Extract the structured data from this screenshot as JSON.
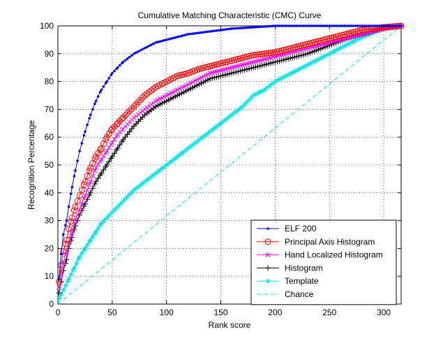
{
  "chart_data": {
    "type": "line",
    "title": "Cumulative Matching Characteristic (CMC) Curve",
    "xlabel": "Rank score",
    "ylabel": "Recognition Percentage",
    "xlim": [
      0,
      316
    ],
    "ylim": [
      0,
      100
    ],
    "xticks": [
      "0",
      "50",
      "100",
      "150",
      "200",
      "250",
      "300"
    ],
    "yticks": [
      "0",
      "10",
      "20",
      "30",
      "40",
      "50",
      "60",
      "70",
      "80",
      "90",
      "100"
    ],
    "grid": "dotted",
    "legend_position": "bottom-right",
    "series": [
      {
        "name": "ELF 200",
        "color": "#0000ff",
        "marker": "dot",
        "line": "solid",
        "points": [
          [
            1,
            9
          ],
          [
            3,
            18
          ],
          [
            5,
            25
          ],
          [
            8,
            30
          ],
          [
            10,
            35
          ],
          [
            13,
            42
          ],
          [
            16,
            48
          ],
          [
            20,
            55
          ],
          [
            25,
            62
          ],
          [
            30,
            68
          ],
          [
            35,
            73
          ],
          [
            40,
            77
          ],
          [
            45,
            80
          ],
          [
            50,
            83
          ],
          [
            55,
            85
          ],
          [
            60,
            87
          ],
          [
            70,
            90
          ],
          [
            80,
            92
          ],
          [
            90,
            94
          ],
          [
            100,
            95
          ],
          [
            120,
            97
          ],
          [
            140,
            98
          ],
          [
            160,
            99
          ],
          [
            180,
            99.5
          ],
          [
            200,
            100
          ],
          [
            230,
            100
          ],
          [
            260,
            100
          ],
          [
            290,
            100
          ],
          [
            316,
            100
          ]
        ]
      },
      {
        "name": "Principal Axis Histogram",
        "color": "#ff0000",
        "marker": "circle",
        "line": "solid",
        "points": [
          [
            1,
            8
          ],
          [
            3,
            14
          ],
          [
            5,
            19
          ],
          [
            8,
            23
          ],
          [
            10,
            27
          ],
          [
            13,
            31
          ],
          [
            16,
            35
          ],
          [
            20,
            39
          ],
          [
            25,
            44
          ],
          [
            30,
            49
          ],
          [
            35,
            53
          ],
          [
            40,
            56
          ],
          [
            45,
            60
          ],
          [
            50,
            63
          ],
          [
            55,
            65
          ],
          [
            60,
            67
          ],
          [
            70,
            71
          ],
          [
            80,
            75
          ],
          [
            90,
            78
          ],
          [
            100,
            80
          ],
          [
            110,
            82
          ],
          [
            120,
            83
          ],
          [
            130,
            84.5
          ],
          [
            140,
            85.5
          ],
          [
            150,
            86.5
          ],
          [
            160,
            87.5
          ],
          [
            170,
            88.5
          ],
          [
            180,
            89.5
          ],
          [
            190,
            90
          ],
          [
            200,
            90.5
          ],
          [
            210,
            91.5
          ],
          [
            220,
            92.5
          ],
          [
            230,
            93.5
          ],
          [
            240,
            94.5
          ],
          [
            250,
            95.5
          ],
          [
            260,
            96.5
          ],
          [
            270,
            97.5
          ],
          [
            280,
            98.5
          ],
          [
            290,
            99
          ],
          [
            300,
            99.5
          ],
          [
            316,
            100
          ]
        ]
      },
      {
        "name": "Hand Localized Histogram",
        "color": "#ff00ff",
        "marker": "x",
        "line": "solid",
        "points": [
          [
            1,
            6
          ],
          [
            3,
            11
          ],
          [
            5,
            15
          ],
          [
            8,
            19
          ],
          [
            10,
            22
          ],
          [
            13,
            26
          ],
          [
            16,
            30
          ],
          [
            20,
            34
          ],
          [
            25,
            39
          ],
          [
            30,
            44
          ],
          [
            35,
            49
          ],
          [
            40,
            52
          ],
          [
            45,
            55
          ],
          [
            50,
            58
          ],
          [
            55,
            61
          ],
          [
            60,
            63
          ],
          [
            70,
            67
          ],
          [
            80,
            70
          ],
          [
            90,
            73
          ],
          [
            100,
            75
          ],
          [
            110,
            77
          ],
          [
            120,
            79
          ],
          [
            130,
            81
          ],
          [
            140,
            83
          ],
          [
            150,
            84
          ],
          [
            160,
            85
          ],
          [
            170,
            86
          ],
          [
            180,
            87
          ],
          [
            190,
            88
          ],
          [
            200,
            89
          ],
          [
            210,
            90
          ],
          [
            220,
            91
          ],
          [
            230,
            92
          ],
          [
            240,
            93
          ],
          [
            250,
            94
          ],
          [
            260,
            95
          ],
          [
            270,
            96
          ],
          [
            280,
            97
          ],
          [
            290,
            98
          ],
          [
            300,
            99
          ],
          [
            316,
            100
          ]
        ]
      },
      {
        "name": "Histogram",
        "color": "#000000",
        "marker": "plus",
        "line": "solid",
        "points": [
          [
            1,
            4
          ],
          [
            3,
            8
          ],
          [
            5,
            12
          ],
          [
            8,
            16
          ],
          [
            10,
            20
          ],
          [
            13,
            24
          ],
          [
            16,
            28
          ],
          [
            20,
            32
          ],
          [
            25,
            36
          ],
          [
            30,
            40
          ],
          [
            35,
            44
          ],
          [
            40,
            47
          ],
          [
            45,
            50
          ],
          [
            50,
            53
          ],
          [
            55,
            56
          ],
          [
            60,
            59
          ],
          [
            70,
            64
          ],
          [
            80,
            68
          ],
          [
            90,
            71
          ],
          [
            100,
            73
          ],
          [
            110,
            75
          ],
          [
            120,
            77
          ],
          [
            130,
            79
          ],
          [
            140,
            81
          ],
          [
            150,
            82
          ],
          [
            160,
            83
          ],
          [
            170,
            84
          ],
          [
            180,
            85
          ],
          [
            190,
            86
          ],
          [
            200,
            87
          ],
          [
            210,
            88
          ],
          [
            220,
            89
          ],
          [
            230,
            90
          ],
          [
            240,
            91.5
          ],
          [
            250,
            93
          ],
          [
            260,
            94.5
          ],
          [
            270,
            96
          ],
          [
            280,
            97
          ],
          [
            290,
            98
          ],
          [
            300,
            99
          ],
          [
            316,
            100
          ]
        ]
      },
      {
        "name": "Template",
        "color": "#00e5e5",
        "marker": "star",
        "line": "solid",
        "points": [
          [
            1,
            2
          ],
          [
            5,
            5
          ],
          [
            10,
            9
          ],
          [
            15,
            13
          ],
          [
            20,
            17
          ],
          [
            25,
            20
          ],
          [
            30,
            23
          ],
          [
            35,
            26
          ],
          [
            40,
            29
          ],
          [
            50,
            33
          ],
          [
            60,
            37
          ],
          [
            70,
            41
          ],
          [
            80,
            44
          ],
          [
            90,
            47
          ],
          [
            100,
            50
          ],
          [
            110,
            53
          ],
          [
            120,
            56
          ],
          [
            130,
            59
          ],
          [
            140,
            62
          ],
          [
            150,
            65
          ],
          [
            160,
            68
          ],
          [
            170,
            71
          ],
          [
            180,
            75
          ],
          [
            190,
            77
          ],
          [
            200,
            80
          ],
          [
            210,
            82
          ],
          [
            220,
            84
          ],
          [
            230,
            86
          ],
          [
            240,
            88
          ],
          [
            250,
            90
          ],
          [
            260,
            92
          ],
          [
            270,
            94
          ],
          [
            280,
            96
          ],
          [
            290,
            97.5
          ],
          [
            300,
            99
          ],
          [
            316,
            100
          ]
        ]
      },
      {
        "name": "Chance",
        "color": "#00e5e5",
        "marker": "none",
        "line": "dashed",
        "points": [
          [
            0,
            0
          ],
          [
            316,
            100
          ]
        ]
      }
    ]
  }
}
